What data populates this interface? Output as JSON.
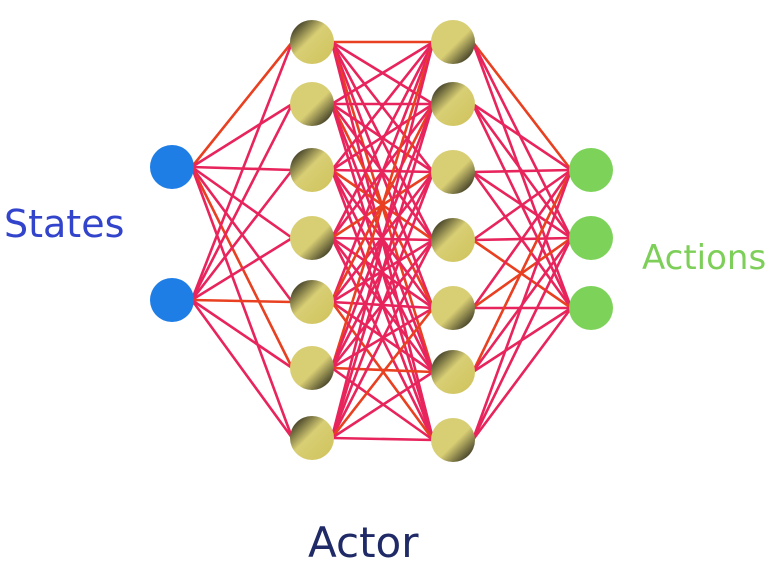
{
  "labels": {
    "states": "States",
    "actions": "Actions",
    "actor": "Actor"
  },
  "network": {
    "layers": [
      {
        "name": "input",
        "nodes": 2
      },
      {
        "name": "hidden-1",
        "nodes": 7
      },
      {
        "name": "hidden-2",
        "nodes": 7
      },
      {
        "name": "output",
        "nodes": 3
      }
    ],
    "fully_connected": true
  },
  "colors": {
    "states_text": "#3344cc",
    "actions_text": "#7ecf5a",
    "actor_text": "#1f2a66",
    "input_node": "#1e7ee6",
    "output_node": "#7dd35a",
    "hidden_node_light": "#d8ce74",
    "hidden_node_dark": "#0a0a0a",
    "edge": "#e8245c",
    "edge_accent": "#e84020"
  }
}
